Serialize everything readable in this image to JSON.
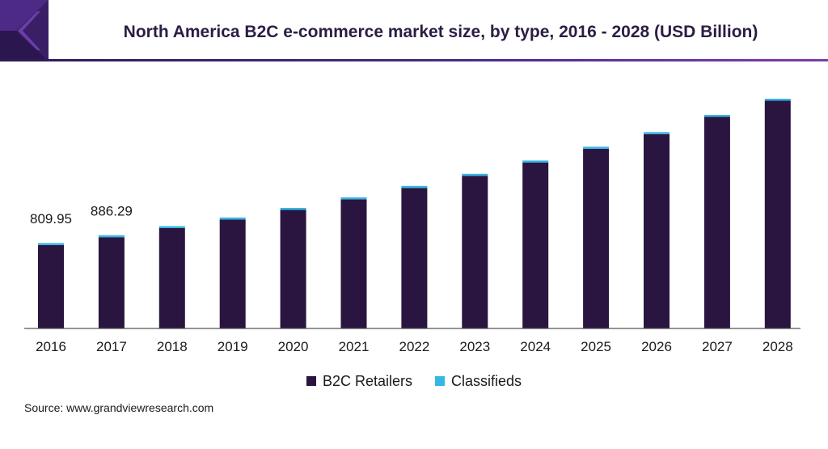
{
  "header": {
    "title": "North America B2C e-commerce market size, by type, 2016 - 2028 (USD Billion)"
  },
  "colors": {
    "b2c_retailers": "#2a1540",
    "classifieds": "#35b6e6",
    "axis": "#555555"
  },
  "chart_data": {
    "type": "bar",
    "stacked": true,
    "title": "North America B2C e-commerce market size, by type, 2016 - 2028 (USD Billion)",
    "xlabel": "",
    "ylabel": "",
    "ylim": [
      0,
      2200
    ],
    "grid": false,
    "legend_position": "bottom",
    "categories": [
      "2016",
      "2017",
      "2018",
      "2019",
      "2020",
      "2021",
      "2022",
      "2023",
      "2024",
      "2025",
      "2026",
      "2027",
      "2028"
    ],
    "series": [
      {
        "name": "B2C Retailers",
        "values": [
          804,
          880,
          967,
          1051,
          1143,
          1245,
          1355,
          1472,
          1600,
          1733,
          1874,
          2040,
          2196
        ]
      },
      {
        "name": "Classifieds",
        "values": [
          6,
          6,
          7,
          8,
          8,
          9,
          10,
          11,
          12,
          13,
          14,
          15,
          16
        ]
      }
    ],
    "data_labels": [
      {
        "category": "2016",
        "text": "809.95"
      },
      {
        "category": "2017",
        "text": "886.29"
      }
    ]
  },
  "legend": {
    "items": [
      {
        "label": "B2C Retailers",
        "color": "#2a1540"
      },
      {
        "label": "Classifieds",
        "color": "#35b6e6"
      }
    ]
  },
  "source": {
    "text": "Source: www.grandviewresearch.com"
  }
}
